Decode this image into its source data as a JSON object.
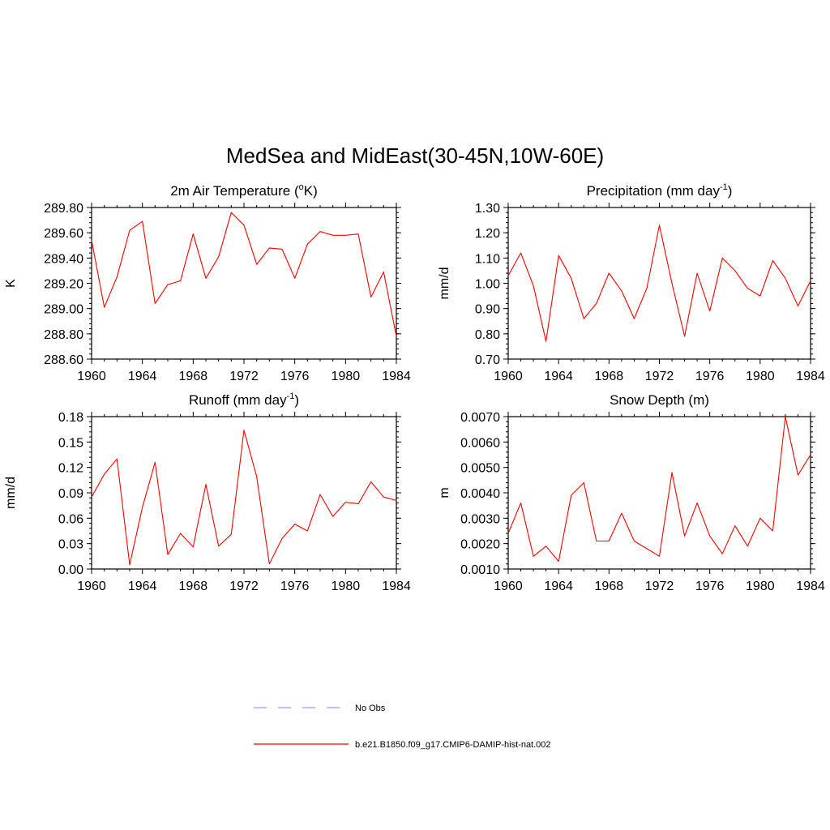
{
  "figure": {
    "title": "MedSea and MidEast(30-45N,10W-60E)"
  },
  "colors": {
    "series": "#ff0000",
    "no_obs": "#9999ff"
  },
  "legend": {
    "entries": [
      {
        "label": "No Obs",
        "style": "dashed",
        "color": "#9999ff"
      },
      {
        "label": "b.e21.B1850.f09_g17.CMIP6-DAMIP-hist-nat.002",
        "style": "solid",
        "color": "#ff0000"
      }
    ]
  },
  "chart_data": [
    {
      "type": "line",
      "title": "2m Air Temperature (",
      "title_sup": "o",
      "title_suffix": "K)",
      "ylabel": "K",
      "xlim": [
        1960,
        1984
      ],
      "ylim": [
        288.6,
        289.8
      ],
      "xticks": [
        1960,
        1964,
        1968,
        1972,
        1976,
        1980,
        1984
      ],
      "yticks": [
        "289.80",
        "289.60",
        "289.40",
        "289.20",
        "289.00",
        "288.80",
        "288.60"
      ],
      "ytick_values": [
        289.8,
        289.6,
        289.4,
        289.2,
        289.0,
        288.8,
        288.6
      ],
      "yminor": 0.04,
      "x": [
        1960,
        1961,
        1962,
        1963,
        1964,
        1965,
        1966,
        1967,
        1968,
        1969,
        1970,
        1971,
        1972,
        1973,
        1974,
        1975,
        1976,
        1977,
        1978,
        1979,
        1980,
        1981,
        1982,
        1983,
        1984
      ],
      "series": [
        {
          "values": [
            289.54,
            289.01,
            289.25,
            289.62,
            289.69,
            289.04,
            289.19,
            289.22,
            289.59,
            289.24,
            289.41,
            289.76,
            289.66,
            289.35,
            289.48,
            289.47,
            289.24,
            289.51,
            289.61,
            289.58,
            289.58,
            289.59,
            289.09,
            289.29,
            288.78
          ]
        }
      ]
    },
    {
      "type": "line",
      "title": "Precipitation (mm day",
      "title_sup": "-1",
      "title_suffix": ")",
      "ylabel": "mm/d",
      "xlim": [
        1960,
        1984
      ],
      "ylim": [
        0.7,
        1.3
      ],
      "xticks": [
        1960,
        1964,
        1968,
        1972,
        1976,
        1980,
        1984
      ],
      "yticks": [
        "1.30",
        "1.20",
        "1.10",
        "1.00",
        "0.90",
        "0.80",
        "0.70"
      ],
      "ytick_values": [
        1.3,
        1.2,
        1.1,
        1.0,
        0.9,
        0.8,
        0.7
      ],
      "yminor": 0.02,
      "x": [
        1960,
        1961,
        1962,
        1963,
        1964,
        1965,
        1966,
        1967,
        1968,
        1969,
        1970,
        1971,
        1972,
        1973,
        1974,
        1975,
        1976,
        1977,
        1978,
        1979,
        1980,
        1981,
        1982,
        1983,
        1984
      ],
      "series": [
        {
          "values": [
            1.03,
            1.12,
            0.99,
            0.77,
            1.11,
            1.02,
            0.86,
            0.92,
            1.04,
            0.97,
            0.86,
            0.98,
            1.23,
            1.0,
            0.79,
            1.04,
            0.89,
            1.1,
            1.05,
            0.98,
            0.95,
            1.09,
            1.02,
            0.91,
            1.01
          ]
        }
      ]
    },
    {
      "type": "line",
      "title": "Runoff (mm day",
      "title_sup": "-1",
      "title_suffix": ")",
      "ylabel": "mm/d",
      "xlim": [
        1960,
        1984
      ],
      "ylim": [
        0.0,
        0.18
      ],
      "xticks": [
        1960,
        1964,
        1968,
        1972,
        1976,
        1980,
        1984
      ],
      "yticks": [
        "0.18",
        "0.15",
        "0.12",
        "0.09",
        "0.06",
        "0.03",
        "0.00"
      ],
      "ytick_values": [
        0.18,
        0.15,
        0.12,
        0.09,
        0.06,
        0.03,
        0.0
      ],
      "yminor": 0.006,
      "x": [
        1960,
        1961,
        1962,
        1963,
        1964,
        1965,
        1966,
        1967,
        1968,
        1969,
        1970,
        1971,
        1972,
        1973,
        1974,
        1975,
        1976,
        1977,
        1978,
        1979,
        1980,
        1981,
        1982,
        1983,
        1984
      ],
      "series": [
        {
          "values": [
            0.085,
            0.112,
            0.13,
            0.005,
            0.073,
            0.126,
            0.017,
            0.042,
            0.026,
            0.1,
            0.027,
            0.041,
            0.164,
            0.109,
            0.006,
            0.036,
            0.053,
            0.045,
            0.088,
            0.062,
            0.079,
            0.077,
            0.103,
            0.085,
            0.081
          ]
        }
      ]
    },
    {
      "type": "line",
      "title": "Snow Depth (m)",
      "title_sup": "",
      "title_suffix": "",
      "ylabel": "m",
      "xlim": [
        1960,
        1984
      ],
      "ylim": [
        0.001,
        0.007
      ],
      "xticks": [
        1960,
        1964,
        1968,
        1972,
        1976,
        1980,
        1984
      ],
      "yticks": [
        "0.0070",
        "0.0060",
        "0.0050",
        "0.0040",
        "0.0030",
        "0.0020",
        "0.0010"
      ],
      "ytick_values": [
        0.007,
        0.006,
        0.005,
        0.004,
        0.003,
        0.002,
        0.001
      ],
      "yminor": 0.0002,
      "x": [
        1960,
        1961,
        1962,
        1963,
        1964,
        1965,
        1966,
        1967,
        1968,
        1969,
        1970,
        1971,
        1972,
        1973,
        1974,
        1975,
        1976,
        1977,
        1978,
        1979,
        1980,
        1981,
        1982,
        1983,
        1984
      ],
      "series": [
        {
          "values": [
            0.0024,
            0.0036,
            0.0015,
            0.0019,
            0.0013,
            0.0039,
            0.0044,
            0.0021,
            0.0021,
            0.0032,
            0.0021,
            0.0018,
            0.0015,
            0.0048,
            0.0023,
            0.0036,
            0.0023,
            0.0016,
            0.0027,
            0.0019,
            0.003,
            0.0025,
            0.007,
            0.0047,
            0.0055
          ]
        }
      ]
    }
  ]
}
